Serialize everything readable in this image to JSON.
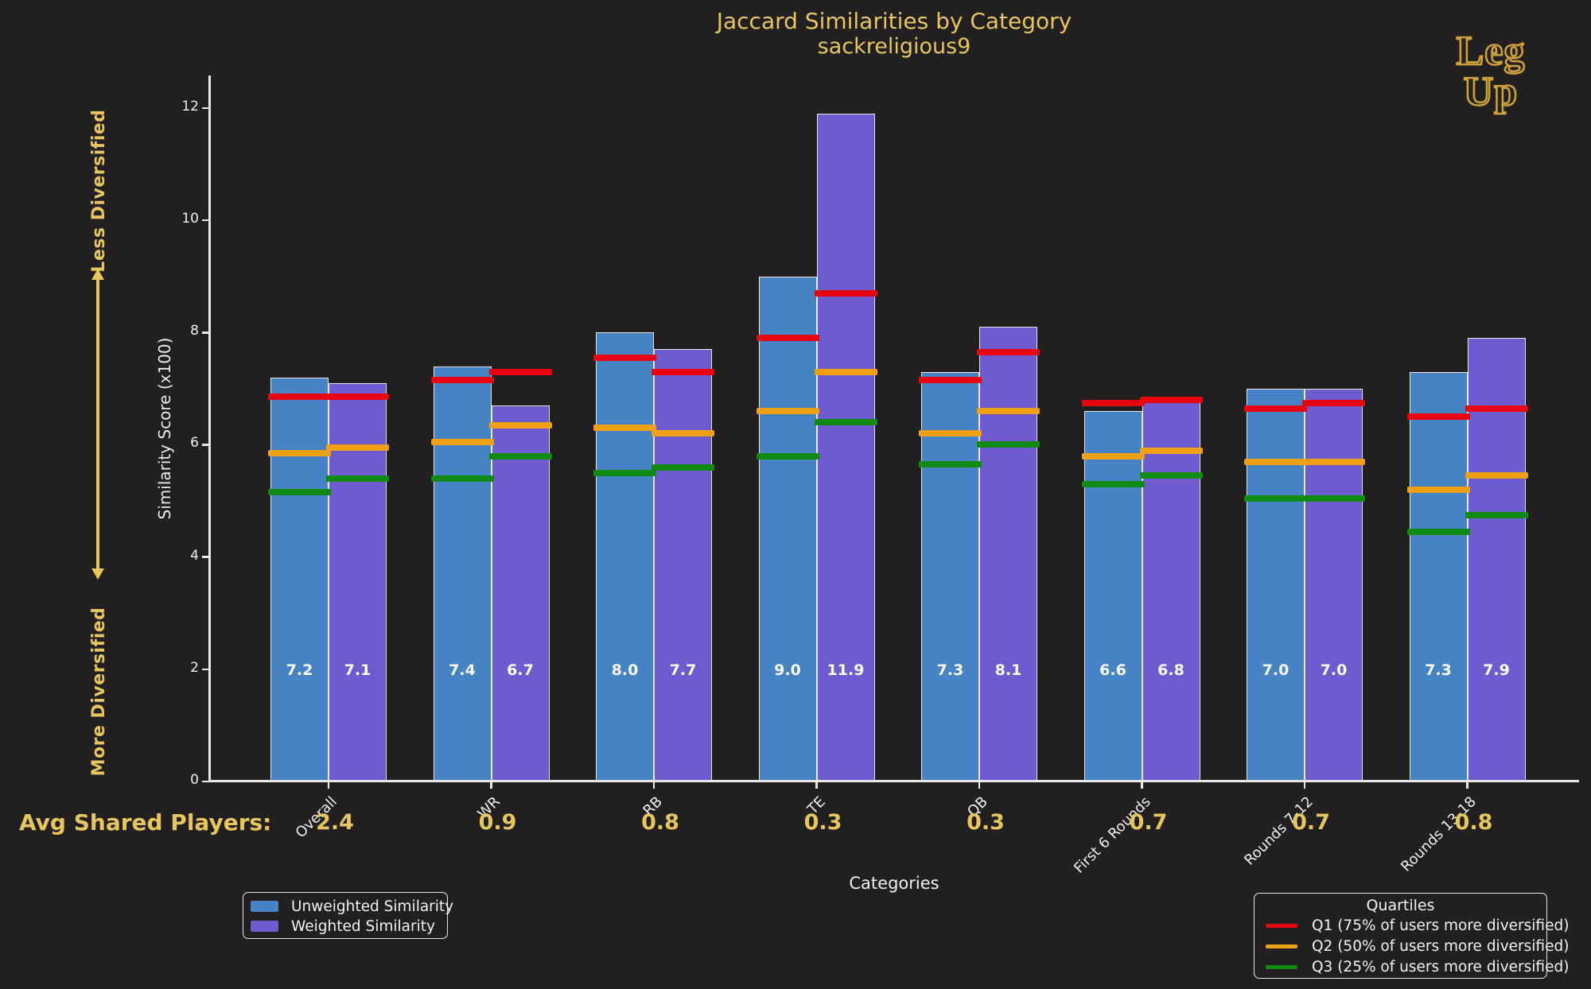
{
  "title": "Jaccard Similarities by Category",
  "subtitle": "sackreligious9",
  "logo": {
    "line1": "Leg",
    "line2": "Up"
  },
  "left_annotations": {
    "top": "Less Diversified",
    "bottom": "More Diversified"
  },
  "avg_shared": {
    "label": "Avg Shared Players:"
  },
  "colors": {
    "background": "#211f20",
    "gold": "#e8c65f",
    "blue": "#4583c5",
    "purple": "#6e5bd0",
    "red": "#e8040f",
    "orange": "#efa013",
    "green": "#108a11",
    "axis": "#e8e8e8",
    "text": "#f0f0f0"
  },
  "chart_data": {
    "type": "bar",
    "title": "Jaccard Similarities by Category",
    "subtitle": "sackreligious9",
    "xlabel": "Categories",
    "ylabel": "Similarity Score (x100)",
    "ylim": [
      0,
      12.58
    ],
    "yticks": [
      0,
      2,
      4,
      6,
      8,
      10,
      12
    ],
    "grid": false,
    "categories": [
      "Overall",
      "WR",
      "RB",
      "TE",
      "QB",
      "First 6 Rounds",
      "Rounds 7-12",
      "Rounds 13-18"
    ],
    "series": [
      {
        "name": "Unweighted Similarity",
        "color_key": "blue",
        "values": [
          7.2,
          7.4,
          8.0,
          9.0,
          7.3,
          6.6,
          7.0,
          7.3
        ],
        "bar_labels": [
          "7.2",
          "7.4",
          "8.0",
          "9.0",
          "7.3",
          "6.6",
          "7.0",
          "7.3"
        ],
        "quartiles": {
          "q1_red": [
            6.85,
            7.15,
            7.55,
            7.9,
            7.15,
            6.75,
            6.65,
            6.5
          ],
          "q2_orange": [
            5.85,
            6.05,
            6.3,
            6.6,
            6.2,
            5.8,
            5.7,
            5.2
          ],
          "q3_green": [
            5.15,
            5.4,
            5.5,
            5.8,
            5.65,
            5.3,
            5.05,
            4.45
          ]
        }
      },
      {
        "name": "Weighted Similarity",
        "color_key": "purple",
        "values": [
          7.1,
          6.7,
          7.7,
          11.9,
          8.1,
          6.8,
          7.0,
          7.9
        ],
        "bar_labels": [
          "7.1",
          "6.7",
          "7.7",
          "11.9",
          "8.1",
          "6.8",
          "7.0",
          "7.9"
        ],
        "quartiles": {
          "q1_red": [
            6.85,
            7.3,
            7.3,
            8.7,
            7.65,
            6.8,
            6.75,
            6.65
          ],
          "q2_orange": [
            5.95,
            6.35,
            6.2,
            7.3,
            6.6,
            5.9,
            5.7,
            5.45
          ],
          "q3_green": [
            5.4,
            5.8,
            5.6,
            6.4,
            6.0,
            5.45,
            5.05,
            4.75
          ]
        }
      }
    ],
    "avg_shared_players": [
      "2.4",
      "0.9",
      "0.8",
      "0.3",
      "0.3",
      "0.7",
      "0.7",
      "0.8"
    ],
    "legend": {
      "entries": [
        {
          "label": "Unweighted Similarity",
          "color_key": "blue"
        },
        {
          "label": "Weighted Similarity",
          "color_key": "purple"
        }
      ]
    },
    "quartile_legend": {
      "title": "Quartiles",
      "entries": [
        {
          "label": "Q1 (75% of users more diversified)",
          "color_key": "red"
        },
        {
          "label": "Q2 (50% of users more diversified)",
          "color_key": "orange"
        },
        {
          "label": "Q3 (25% of users more diversified)",
          "color_key": "green"
        }
      ]
    }
  }
}
